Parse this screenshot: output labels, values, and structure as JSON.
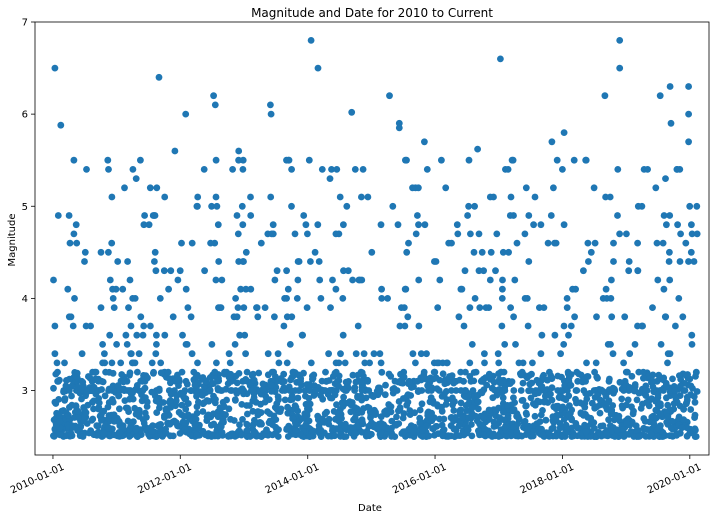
{
  "chart_data": {
    "type": "scatter",
    "title": "Magnitude and Date for 2010 to Current",
    "xlabel": "Date",
    "ylabel": "Magnitude",
    "xlim": [
      "2009-09-20",
      "2020-04-20"
    ],
    "ylim": [
      2.3,
      7.0
    ],
    "x_ticks": [
      "2010-01-01",
      "2012-01-01",
      "2014-01-01",
      "2016-01-01",
      "2018-01-01",
      "2020-01-01"
    ],
    "y_ticks": [
      3,
      4,
      5,
      6,
      7
    ],
    "grid": false,
    "marker_color": "#1f77b4",
    "highlight_points": [
      {
        "x": "2010-01-12",
        "y": 6.5
      },
      {
        "x": "2010-02-15",
        "y": 5.88
      },
      {
        "x": "2011-09-01",
        "y": 6.4
      },
      {
        "x": "2012-07-10",
        "y": 6.2
      },
      {
        "x": "2012-07-20",
        "y": 6.1
      },
      {
        "x": "2012-12-01",
        "y": 5.6
      },
      {
        "x": "2013-06-01",
        "y": 6.1
      },
      {
        "x": "2013-06-05",
        "y": 6.0
      },
      {
        "x": "2014-01-20",
        "y": 6.8
      },
      {
        "x": "2014-03-01",
        "y": 6.5
      },
      {
        "x": "2014-09-10",
        "y": 6.02
      },
      {
        "x": "2015-04-15",
        "y": 6.2
      },
      {
        "x": "2015-06-10",
        "y": 5.9
      },
      {
        "x": "2015-06-10",
        "y": 5.85
      },
      {
        "x": "2017-01-10",
        "y": 6.6
      },
      {
        "x": "2018-09-01",
        "y": 6.2
      },
      {
        "x": "2018-11-25",
        "y": 6.8
      },
      {
        "x": "2018-11-25",
        "y": 6.5
      },
      {
        "x": "2019-07-15",
        "y": 6.2
      },
      {
        "x": "2019-09-10",
        "y": 6.3
      },
      {
        "x": "2019-09-15",
        "y": 5.9
      },
      {
        "x": "2019-12-25",
        "y": 6.3
      },
      {
        "x": "2019-12-25",
        "y": 6.0
      },
      {
        "x": "2019-12-25",
        "y": 5.7
      },
      {
        "x": "2018-01-10",
        "y": 5.8
      },
      {
        "x": "2017-11-01",
        "y": 5.7
      },
      {
        "x": "2016-09-01",
        "y": 5.62
      },
      {
        "x": "2010-05-01",
        "y": 5.5
      },
      {
        "x": "2011-12-01",
        "y": 5.6
      },
      {
        "x": "2012-02-01",
        "y": 6.0
      },
      {
        "x": "2013-09-01",
        "y": 5.5
      },
      {
        "x": "2014-01-10",
        "y": 5.5
      },
      {
        "x": "2015-11-01",
        "y": 5.7
      }
    ],
    "bulk_distribution": {
      "x_range": [
        "2010-01-01",
        "2020-02-15"
      ],
      "y_min": 2.5,
      "dense_band": [
        2.5,
        3.2
      ],
      "sparse_upper": [
        3.2,
        5.5
      ],
      "approx_points": 2400
    }
  }
}
